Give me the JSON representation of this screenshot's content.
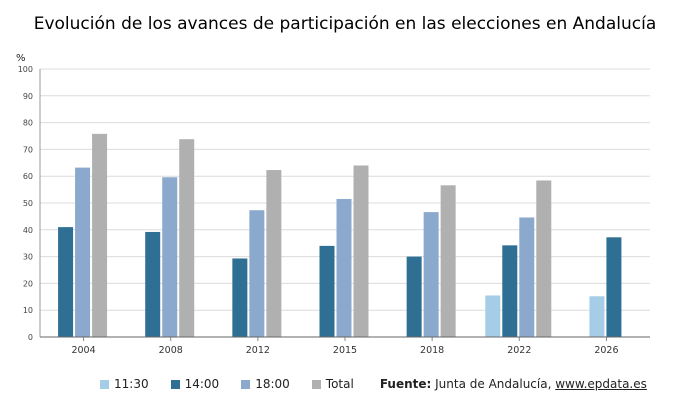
{
  "title": "Evolución de los avances de participación en las elecciones en Andalucía",
  "source": {
    "label": "Fuente:",
    "text": "Junta de Andalucía,",
    "link": "www.epdata.es"
  },
  "colors": {
    "11:30": "#a6cde8",
    "14:00": "#2f6f94",
    "18:00": "#8aa9cc",
    "Total": "#b0b0b0"
  },
  "chart_data": {
    "type": "bar",
    "title": "Evolución de los avances de participación en las elecciones en Andalucía",
    "ylabel": "%",
    "ylim": [
      0,
      100
    ],
    "yticks": [
      0,
      10,
      20,
      30,
      40,
      50,
      60,
      70,
      80,
      90,
      100
    ],
    "grid": true,
    "legend": "bottom",
    "categories": [
      "2004",
      "2008",
      "2012",
      "2015",
      "2018",
      "2022",
      "2026"
    ],
    "series": [
      {
        "name": "11:30",
        "values": [
          null,
          null,
          null,
          null,
          null,
          15.5,
          15.2
        ]
      },
      {
        "name": "14:00",
        "values": [
          41.0,
          39.2,
          29.3,
          34.0,
          30.0,
          34.2,
          37.2
        ]
      },
      {
        "name": "18:00",
        "values": [
          63.2,
          59.6,
          47.3,
          51.5,
          46.6,
          44.6,
          null
        ]
      },
      {
        "name": "Total",
        "values": [
          75.8,
          73.8,
          62.3,
          64.0,
          56.6,
          58.4,
          null
        ]
      }
    ]
  }
}
